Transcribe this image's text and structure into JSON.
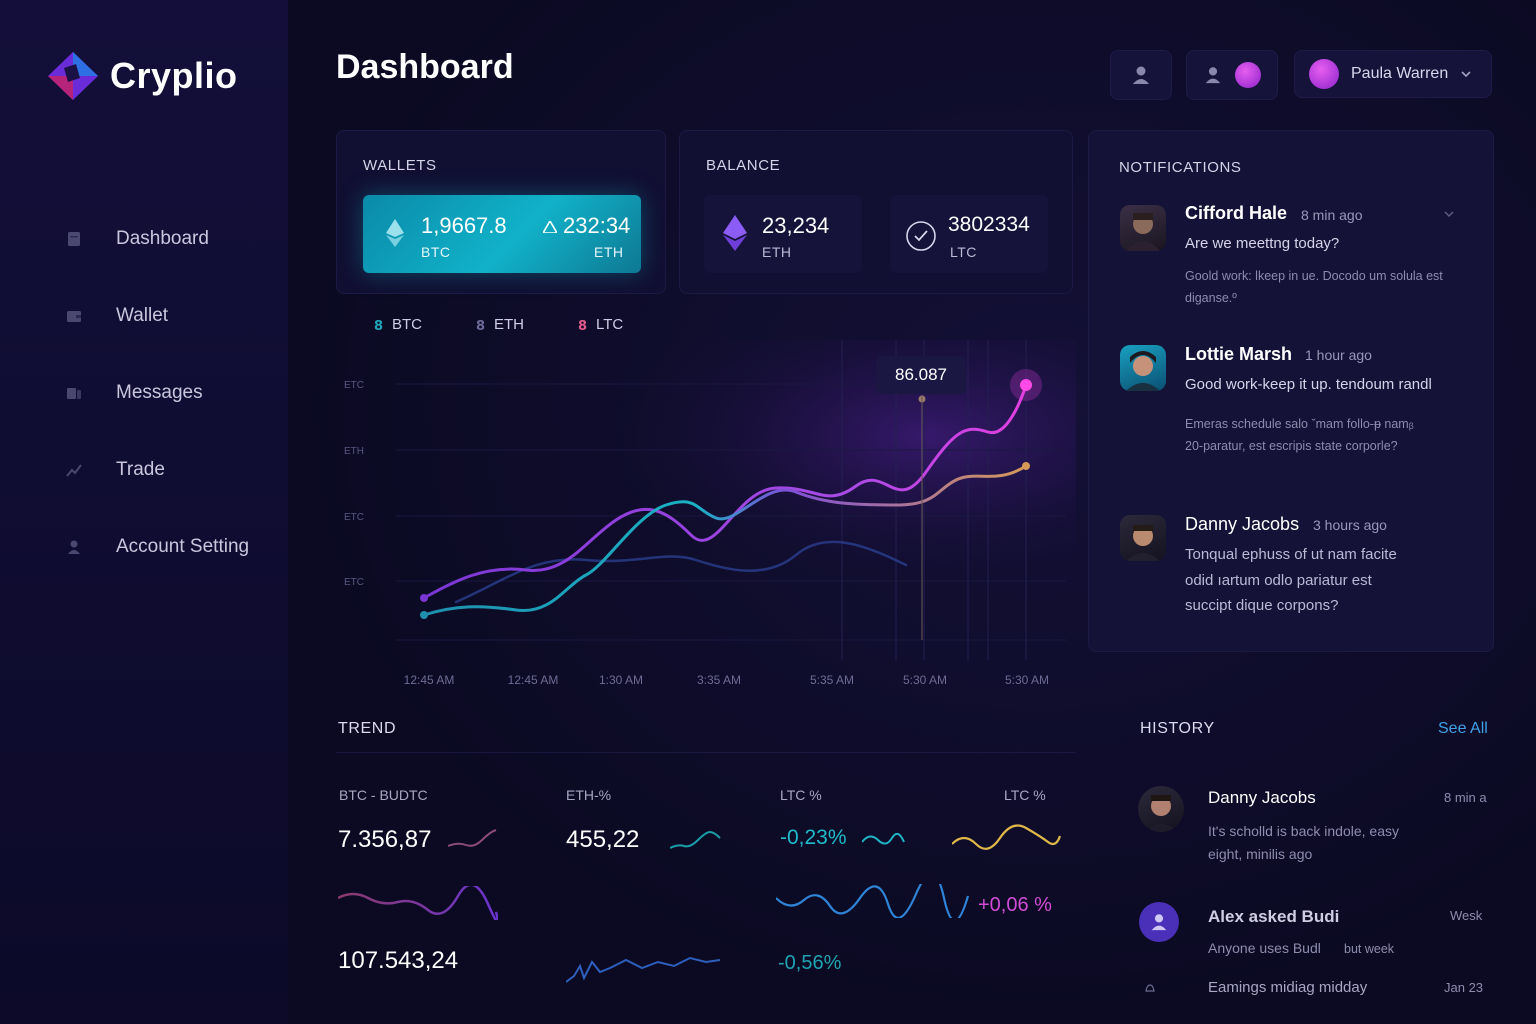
{
  "brand": {
    "name": "Cryplio"
  },
  "sidebar": {
    "items": [
      {
        "label": "Dashboard",
        "icon": "document-icon"
      },
      {
        "label": "Wallet",
        "icon": "wallet-icon"
      },
      {
        "label": "Messages",
        "icon": "messages-icon"
      },
      {
        "label": "Trade",
        "icon": "trend-icon"
      },
      {
        "label": "Account Setting",
        "icon": "user-icon"
      }
    ]
  },
  "header": {
    "title": "Dashboard",
    "user": {
      "name": "Paula Warren"
    }
  },
  "wallets": {
    "title": "WALLETS",
    "btc_value": "1,9667.8",
    "btc_unit": "BTC",
    "eth_value": "232:34",
    "eth_unit": "ETH"
  },
  "balance": {
    "title": "BALANCE",
    "eth_value": "23,234",
    "eth_unit": "ETH",
    "ltc_value": "3802334",
    "ltc_unit": "LTC"
  },
  "chart_data": {
    "type": "line",
    "legend": [
      "BTC",
      "ETH",
      "LTC"
    ],
    "y_tick_labels": [
      "ΕTC",
      "ETH",
      "ETC",
      "ETC"
    ],
    "x_tick_labels": [
      "12:45 AM",
      "12:45 AM",
      "1:30 AM",
      "3:35 AM",
      "5:35 AM",
      "5:30 AM",
      "5:30 AM"
    ],
    "tooltip": "86.087",
    "series": [
      {
        "name": "BTC",
        "color": "#1fa7b9",
        "values": [
          0.05,
          0.15,
          0.45,
          0.55,
          0.3,
          0.62
        ]
      },
      {
        "name": "ETH",
        "color": "#b14be8",
        "values": [
          0.1,
          0.3,
          0.65,
          0.5,
          0.75,
          0.95
        ]
      },
      {
        "name": "LTC",
        "color": "#d99a5a",
        "values": [
          0.3,
          0.45,
          0.55,
          0.6
        ]
      }
    ]
  },
  "notifications": {
    "title": "NOTIFICATIONS",
    "items": [
      {
        "name": "Cifford Hale",
        "time": "8 min ago",
        "message": "Are we meettng today?",
        "sub": "Goold work: lkeep in ue. Docodo um solula est diganse.º"
      },
      {
        "name": "Lottie Marsh",
        "time": "1 hour ago",
        "message": "Good work-keep it up. tendoum randl",
        "sub": "Emeras schedule salo ˇmam follo-ᵽ namᵦ 20-paratur, est escripis state corporle?"
      },
      {
        "name": "Danny Jacobs",
        "time": "3 hours ago",
        "message": "Tonqual ephuss of ut nam facite odid ıartum odlo pariatur est succipt dique corpons?",
        "sub": ""
      }
    ]
  },
  "trend": {
    "title": "TREND",
    "col1_label": "BTC - BUDTC",
    "col1_value": "7.356,87",
    "col1_value2": "107.543,24",
    "col2_label": "ETH-%",
    "col2_value": "455,22",
    "col3_label": "LTC %",
    "col3_value": "-0,23%",
    "col3_value2": "-0,56%",
    "col4_label": "LTC %",
    "col4_value": "+0,06 %"
  },
  "history": {
    "title": "HISTORY",
    "see_all": "See All",
    "items": [
      {
        "name": "Danny Jacobs",
        "time": "8 min a",
        "text": "It's scholld is back indole, easy eight, minilis ago"
      },
      {
        "name": "Alex asked Budi",
        "time": "Wesk",
        "text": "Anyone uses Budl",
        "text2": "but week"
      },
      {
        "name": "",
        "time": "Jan 23",
        "text": "Eamings midiag midday"
      }
    ]
  },
  "colors": {
    "accent_cyan": "#11b2c9",
    "accent_purple": "#b14be8",
    "accent_pink": "#e040e6",
    "accent_gold": "#e0b84a",
    "link_blue": "#3fa0e6"
  }
}
